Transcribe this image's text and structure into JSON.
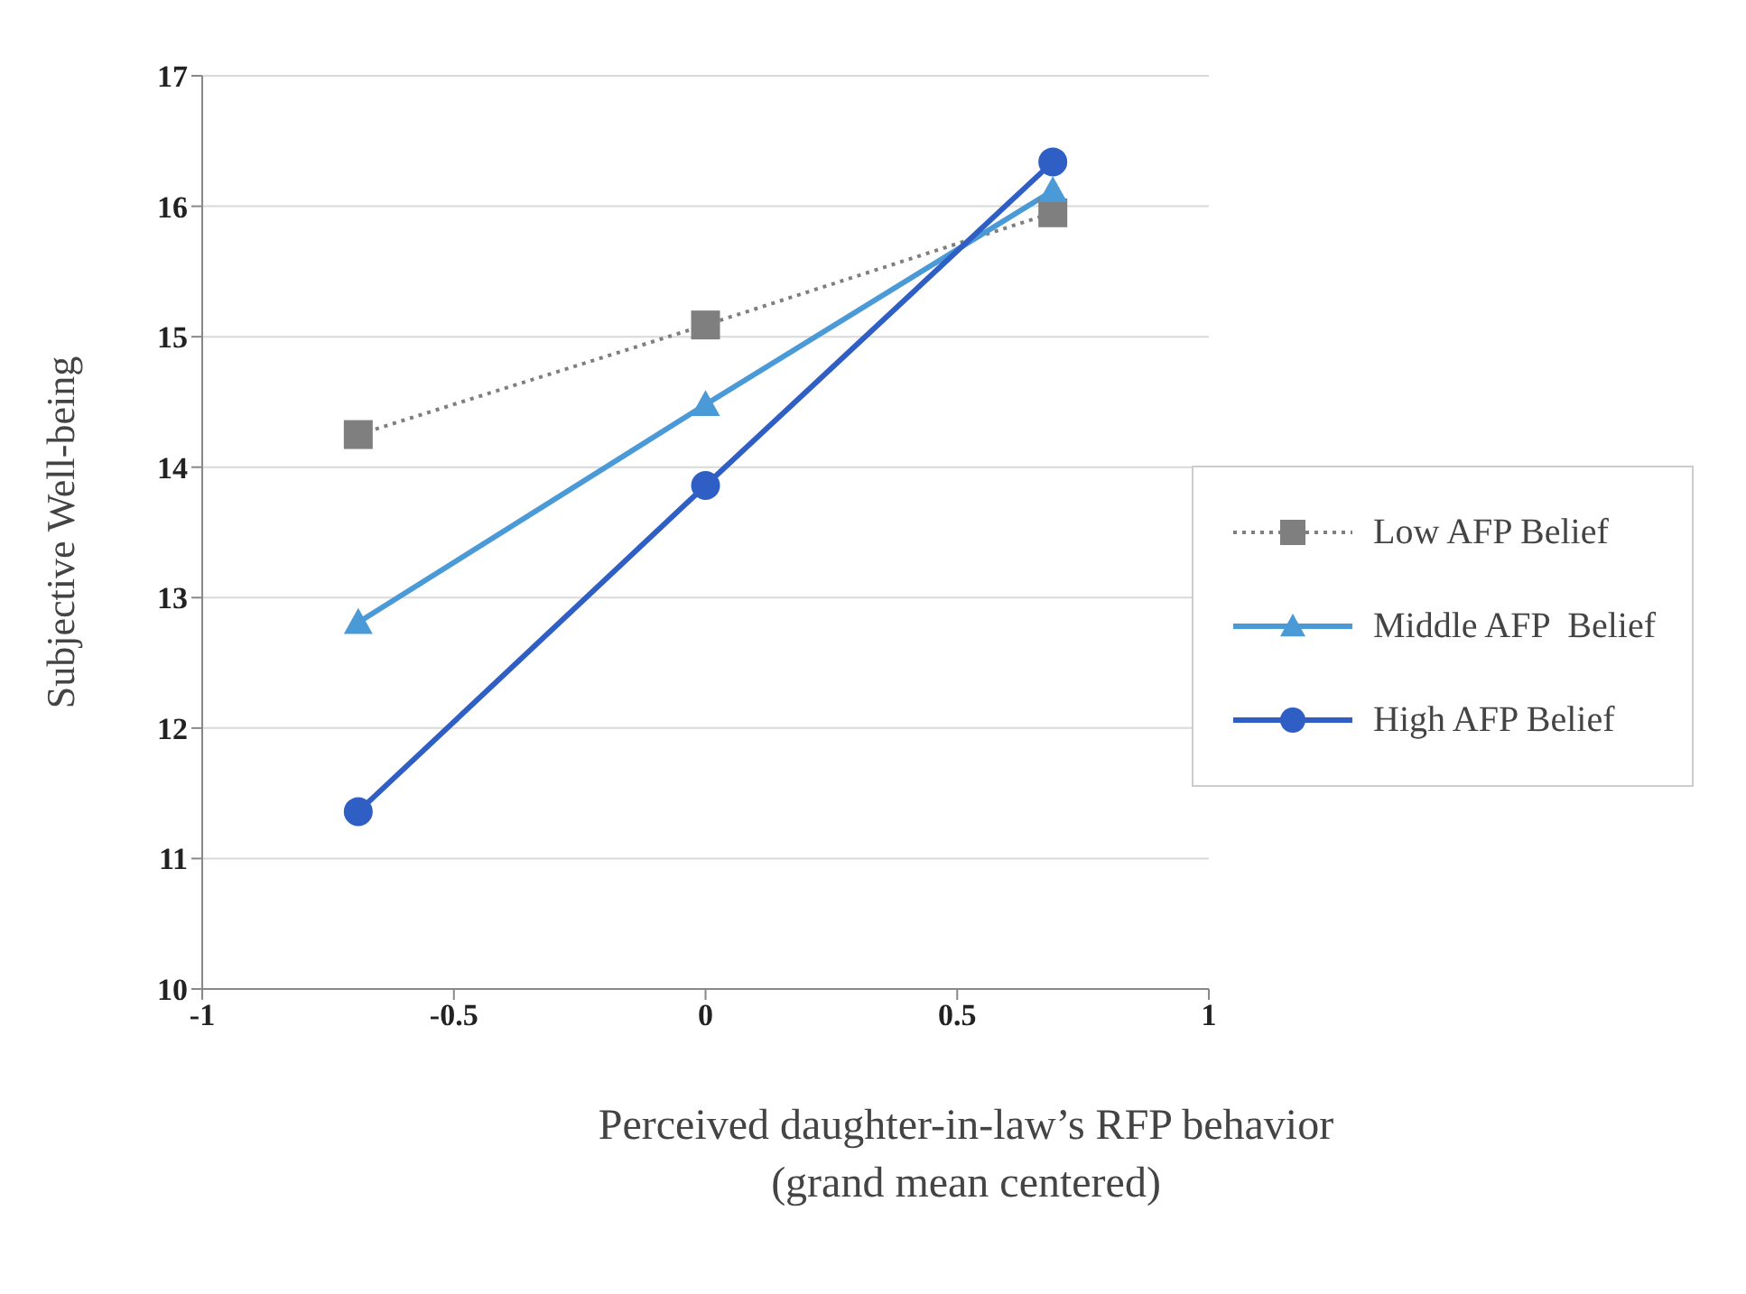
{
  "chart_data": {
    "type": "line",
    "xlabel": "Perceived daughter-in-law’s RFP behavior\n(grand mean centered)",
    "ylabel": "Subjective Well-being",
    "x": [
      -0.69,
      0,
      0.69
    ],
    "series": [
      {
        "name": "Low AFP Belief",
        "color": "#7f7f7f",
        "values": [
          14.25,
          15.09,
          15.95
        ],
        "marker": "square",
        "line_style": "dotted"
      },
      {
        "name": "Middle AFP  Belief",
        "color": "#4a9ad8",
        "values": [
          12.81,
          14.48,
          16.12
        ],
        "marker": "triangle",
        "line_style": "solid"
      },
      {
        "name": "High AFP Belief",
        "color": "#2f5fc4",
        "values": [
          11.36,
          13.86,
          16.34
        ],
        "marker": "circle",
        "line_style": "solid"
      }
    ],
    "xlim": [
      -1,
      1
    ],
    "xticks": [
      -1,
      -0.5,
      0,
      0.5,
      1
    ],
    "ylim": [
      10,
      17
    ],
    "yticks": [
      10,
      11,
      12,
      13,
      14,
      15,
      16,
      17
    ],
    "grid": "y",
    "legend": "right"
  }
}
